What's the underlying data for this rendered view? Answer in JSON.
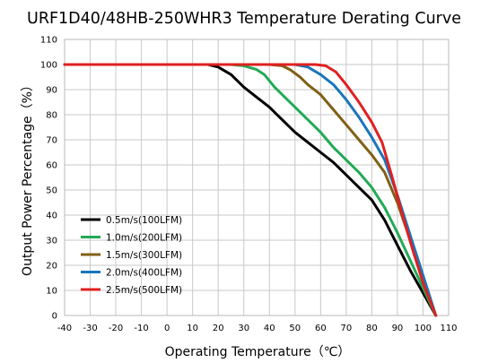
{
  "chart_data": {
    "type": "line",
    "title": "URF1D40/48HB-250WHR3 Temperature Derating Curve",
    "xlabel": "Operating Temperature（℃）",
    "ylabel": "Output Power Percentage（%）",
    "xlim": [
      -40,
      110
    ],
    "ylim": [
      0,
      110
    ],
    "xticks": [
      -40,
      -30,
      -20,
      -10,
      0,
      10,
      20,
      30,
      40,
      50,
      60,
      70,
      80,
      90,
      100,
      110
    ],
    "yticks": [
      0,
      10,
      20,
      30,
      40,
      50,
      60,
      70,
      80,
      90,
      100,
      110
    ],
    "grid": true,
    "legend_position": "bottom-left",
    "series": [
      {
        "name": "0.5m/s(100LFM)",
        "color": "#000000",
        "x": [
          -40,
          10,
          16,
          20,
          25,
          30,
          35,
          40,
          45,
          50,
          55,
          60,
          65,
          70,
          75,
          80,
          85,
          90,
          95,
          100,
          105
        ],
        "y": [
          100,
          100,
          100,
          99,
          96,
          91,
          87,
          83,
          78,
          73,
          69,
          65,
          61,
          56,
          51,
          46,
          38,
          28,
          18,
          9,
          0
        ]
      },
      {
        "name": "1.0m/s(200LFM)",
        "color": "#22aa55",
        "x": [
          -40,
          20,
          25,
          30,
          35,
          38,
          42,
          45,
          50,
          55,
          60,
          65,
          70,
          75,
          80,
          85,
          90,
          95,
          100,
          105
        ],
        "y": [
          100,
          100,
          100,
          99.5,
          98,
          96,
          91,
          88,
          83,
          78,
          73,
          67,
          62,
          57,
          51,
          43,
          33,
          22,
          11,
          0
        ]
      },
      {
        "name": "1.5m/s(300LFM)",
        "color": "#806015",
        "x": [
          -40,
          30,
          40,
          45,
          48,
          52,
          55,
          60,
          65,
          70,
          75,
          80,
          85,
          90,
          95,
          100,
          105
        ],
        "y": [
          100,
          100,
          100,
          99.5,
          98,
          95,
          92,
          88,
          82,
          76,
          70,
          64,
          57,
          45,
          30,
          15,
          0
        ]
      },
      {
        "name": "2.0m/s(400LFM)",
        "color": "#1a75bb",
        "x": [
          -40,
          40,
          50,
          55,
          60,
          65,
          70,
          75,
          80,
          85,
          90,
          95,
          100,
          105
        ],
        "y": [
          100,
          100,
          100,
          99,
          96,
          92,
          86,
          79,
          71,
          62,
          48,
          32,
          16,
          0
        ]
      },
      {
        "name": "2.5m/s(500LFM)",
        "color": "#e02020",
        "x": [
          -40,
          50,
          58,
          62,
          66,
          70,
          75,
          80,
          84,
          88,
          92,
          96,
          100,
          105
        ],
        "y": [
          100,
          100,
          100,
          99.5,
          97,
          92,
          85,
          77,
          69,
          55,
          40,
          26,
          13,
          0
        ]
      }
    ]
  }
}
